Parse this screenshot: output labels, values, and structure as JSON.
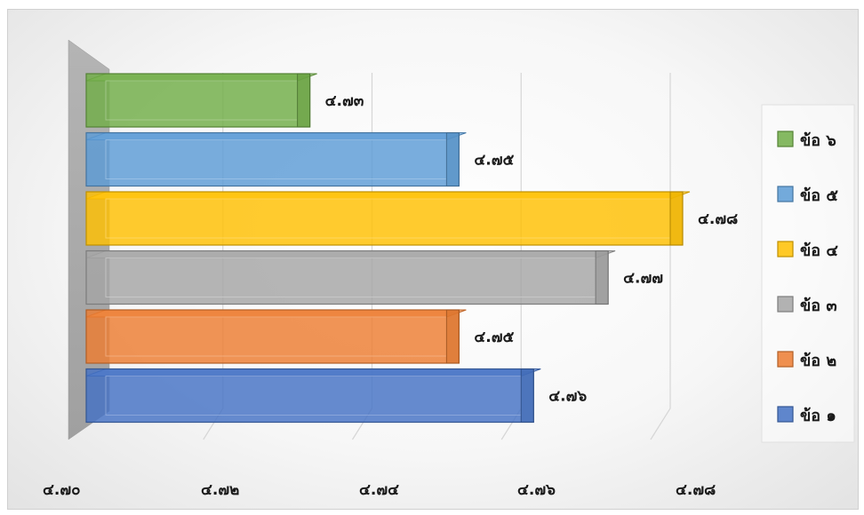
{
  "chart_data": {
    "type": "bar",
    "orientation": "horizontal",
    "three_d": true,
    "title": "",
    "xlabel": "",
    "ylabel": "",
    "xlim": [
      4.7,
      4.78
    ],
    "x_ticks": [
      "๔.๗๐",
      "๔.๗๒",
      "๔.๗๔",
      "๔.๗๖",
      "๔.๗๘"
    ],
    "grid": true,
    "legend_position": "right",
    "bars": [
      {
        "name": "ข้อ ๑",
        "value": 4.76,
        "label": "๔.๗๖",
        "color": "#4472c4"
      },
      {
        "name": "ข้อ ๒",
        "value": 4.75,
        "label": "๔.๗๕",
        "color": "#ed7d31"
      },
      {
        "name": "ข้อ ๓",
        "value": 4.77,
        "label": "๔.๗๗",
        "color": "#a5a5a5"
      },
      {
        "name": "ข้อ ๔",
        "value": 4.78,
        "label": "๔.๗๘",
        "color": "#ffc000"
      },
      {
        "name": "ข้อ ๕",
        "value": 4.75,
        "label": "๔.๗๕",
        "color": "#5b9bd5"
      },
      {
        "name": "ข้อ ๖",
        "value": 4.73,
        "label": "๔.๗๓",
        "color": "#70ad47"
      }
    ],
    "legend_order": [
      "ข้อ ๖",
      "ข้อ ๕",
      "ข้อ ๔",
      "ข้อ ๓",
      "ข้อ ๒",
      "ข้อ ๑"
    ]
  }
}
